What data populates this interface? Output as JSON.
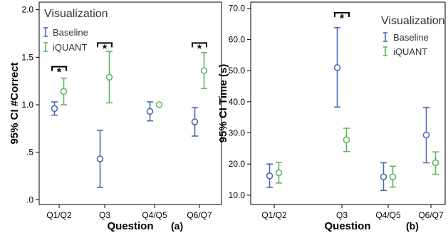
{
  "chart_data": [
    {
      "type": "scatter",
      "subtype": "error-bar",
      "panel_label": "(a)",
      "xlabel": "Question",
      "ylabel": "95% CI #Correct",
      "categories": [
        "Q1/Q2",
        "Q3",
        "Q4/Q5",
        "Q6/Q7"
      ],
      "ylim": [
        -0.05,
        2.08
      ],
      "yticks": [
        0.0,
        0.5,
        1.0,
        1.5,
        2.0
      ],
      "ytick_labels": [
        ".0",
        ".5",
        "1.0",
        "1.5",
        "2.0"
      ],
      "grid": false,
      "legend": {
        "title": "Visualization",
        "position": "top-left"
      },
      "series": [
        {
          "name": "Baseline",
          "color": "#4a6bb0",
          "mean": [
            0.96,
            0.43,
            0.93,
            0.82
          ],
          "lower": [
            0.89,
            0.13,
            0.83,
            0.67
          ],
          "upper": [
            1.03,
            0.73,
            1.03,
            0.97
          ]
        },
        {
          "name": "iQUANT",
          "color": "#5cb85c",
          "mean": [
            1.14,
            1.29,
            1.0,
            1.36
          ],
          "lower": [
            1.0,
            1.02,
            1.0,
            1.17
          ],
          "upper": [
            1.28,
            1.56,
            1.0,
            1.55
          ]
        }
      ],
      "significance": [
        {
          "category_index": 0,
          "y": 1.4,
          "label": "*"
        },
        {
          "category_index": 1,
          "y": 1.65,
          "label": "*"
        },
        {
          "category_index": 3,
          "y": 1.65,
          "label": "*"
        }
      ]
    },
    {
      "type": "scatter",
      "subtype": "error-bar",
      "panel_label": "(b)",
      "xlabel": "Question",
      "ylabel": "95% CI Time (s)",
      "categories": [
        "Q1/Q2",
        "Q3",
        "Q4/Q5",
        "Q6/Q7"
      ],
      "ylim": [
        7,
        72
      ],
      "yticks": [
        10,
        20,
        30,
        40,
        50,
        60,
        70
      ],
      "ytick_labels": [
        "10.0",
        "20.0",
        "30.0",
        "40.0",
        "50.0",
        "60.0",
        "70.0"
      ],
      "grid": false,
      "legend": {
        "title": "Visualization",
        "position": "top-right"
      },
      "series": [
        {
          "name": "Baseline",
          "color": "#4a6bb0",
          "mean": [
            16.2,
            51.0,
            15.9,
            29.3
          ],
          "lower": [
            12.5,
            38.3,
            11.5,
            20.4
          ],
          "upper": [
            20.0,
            63.8,
            20.4,
            38.2
          ]
        },
        {
          "name": "iQUANT",
          "color": "#5cb85c",
          "mean": [
            17.2,
            27.8,
            15.9,
            20.4
          ],
          "lower": [
            13.9,
            24.0,
            12.6,
            16.7
          ],
          "upper": [
            20.5,
            31.5,
            19.3,
            23.9
          ]
        }
      ],
      "significance": [
        {
          "category_index": 1,
          "y": 68.6,
          "label": "*"
        }
      ]
    }
  ]
}
